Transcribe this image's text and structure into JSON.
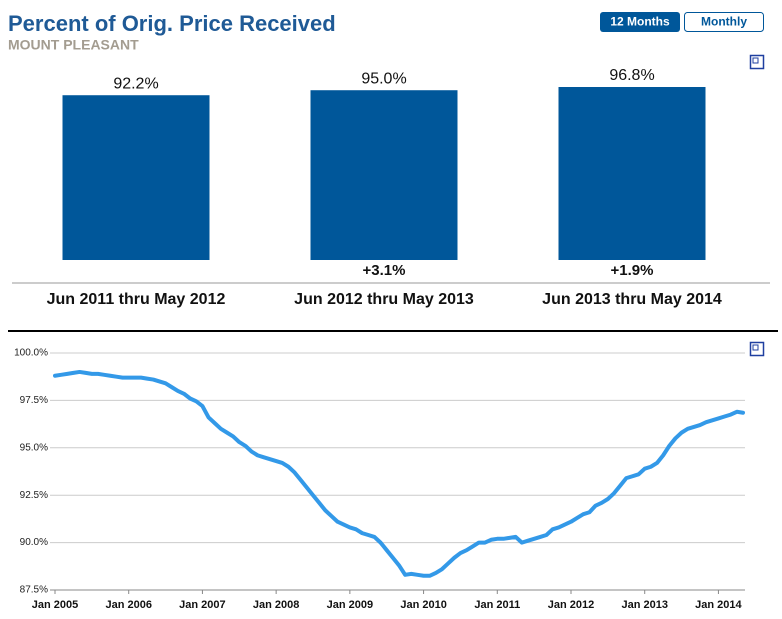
{
  "header": {
    "title": "Percent of Orig. Price Received",
    "subtitle": "MOUNT PLEASANT"
  },
  "controls": [
    {
      "label": "12 Months",
      "active": true
    },
    {
      "label": "Monthly",
      "active": false
    }
  ],
  "chart_data": [
    {
      "type": "bar",
      "categories": [
        "Jun 2011 thru May 2012",
        "Jun 2012 thru May 2013",
        "Jun 2013 thru May 2014"
      ],
      "values": [
        92.2,
        95.0,
        96.8
      ],
      "value_labels": [
        "92.2%",
        "95.0%",
        "96.8%"
      ],
      "changes": [
        null,
        3.1,
        1.9
      ],
      "change_labels": [
        null,
        "+3.1%",
        "+1.9%"
      ],
      "color": "#00579a"
    },
    {
      "type": "line",
      "x": [
        "2005-01",
        "2005-02",
        "2005-03",
        "2005-04",
        "2005-05",
        "2005-06",
        "2005-07",
        "2005-08",
        "2005-09",
        "2005-10",
        "2005-11",
        "2005-12",
        "2006-01",
        "2006-02",
        "2006-03",
        "2006-04",
        "2006-05",
        "2006-06",
        "2006-07",
        "2006-08",
        "2006-09",
        "2006-10",
        "2006-11",
        "2006-12",
        "2007-01",
        "2007-02",
        "2007-03",
        "2007-04",
        "2007-05",
        "2007-06",
        "2007-07",
        "2007-08",
        "2007-09",
        "2007-10",
        "2007-11",
        "2007-12",
        "2008-01",
        "2008-02",
        "2008-03",
        "2008-04",
        "2008-05",
        "2008-06",
        "2008-07",
        "2008-08",
        "2008-09",
        "2008-10",
        "2008-11",
        "2008-12",
        "2009-01",
        "2009-02",
        "2009-03",
        "2009-04",
        "2009-05",
        "2009-06",
        "2009-07",
        "2009-08",
        "2009-09",
        "2009-10",
        "2009-11",
        "2009-12",
        "2010-01",
        "2010-02",
        "2010-03",
        "2010-04",
        "2010-05",
        "2010-06",
        "2010-07",
        "2010-08",
        "2010-09",
        "2010-10",
        "2010-11",
        "2010-12",
        "2011-01",
        "2011-02",
        "2011-03",
        "2011-04",
        "2011-05",
        "2011-06",
        "2011-07",
        "2011-08",
        "2011-09",
        "2011-10",
        "2011-11",
        "2011-12",
        "2012-01",
        "2012-02",
        "2012-03",
        "2012-04",
        "2012-05",
        "2012-06",
        "2012-07",
        "2012-08",
        "2012-09",
        "2012-10",
        "2012-11",
        "2012-12",
        "2013-01",
        "2013-02",
        "2013-03",
        "2013-04",
        "2013-05",
        "2013-06",
        "2013-07",
        "2013-08",
        "2013-09",
        "2013-10",
        "2013-11",
        "2013-12",
        "2014-01",
        "2014-02",
        "2014-03",
        "2014-04",
        "2014-05"
      ],
      "values": [
        98.8,
        98.85,
        98.9,
        98.95,
        99.0,
        98.95,
        98.9,
        98.9,
        98.85,
        98.8,
        98.75,
        98.7,
        98.7,
        98.7,
        98.7,
        98.65,
        98.6,
        98.5,
        98.4,
        98.2,
        98.0,
        97.85,
        97.6,
        97.45,
        97.2,
        96.6,
        96.3,
        96.0,
        95.8,
        95.6,
        95.3,
        95.1,
        94.8,
        94.6,
        94.5,
        94.4,
        94.3,
        94.2,
        94.0,
        93.7,
        93.3,
        92.9,
        92.5,
        92.1,
        91.7,
        91.4,
        91.1,
        90.95,
        90.8,
        90.7,
        90.5,
        90.4,
        90.3,
        90.0,
        89.6,
        89.2,
        88.8,
        88.3,
        88.35,
        88.3,
        88.25,
        88.25,
        88.4,
        88.6,
        88.9,
        89.2,
        89.45,
        89.6,
        89.8,
        90.0,
        90.0,
        90.15,
        90.2,
        90.2,
        90.25,
        90.3,
        90.0,
        90.1,
        90.2,
        90.3,
        90.4,
        90.7,
        90.8,
        90.95,
        91.1,
        91.3,
        91.5,
        91.6,
        91.95,
        92.1,
        92.3,
        92.6,
        93.0,
        93.4,
        93.5,
        93.6,
        93.9,
        94.0,
        94.2,
        94.6,
        95.1,
        95.5,
        95.8,
        96.0,
        96.1,
        96.2,
        96.35,
        96.45,
        96.55,
        96.65,
        96.75,
        96.9,
        96.85
      ],
      "color": "#3399e8",
      "xlim": [
        "2005-01",
        "2014-05"
      ],
      "xticks": [
        {
          "value": "2005-01",
          "label": "Jan 2005"
        },
        {
          "value": "2006-01",
          "label": "Jan 2006"
        },
        {
          "value": "2007-01",
          "label": "Jan 2007"
        },
        {
          "value": "2008-01",
          "label": "Jan 2008"
        },
        {
          "value": "2009-01",
          "label": "Jan 2009"
        },
        {
          "value": "2010-01",
          "label": "Jan 2010"
        },
        {
          "value": "2011-01",
          "label": "Jan 2011"
        },
        {
          "value": "2012-01",
          "label": "Jan 2012"
        },
        {
          "value": "2013-01",
          "label": "Jan 2013"
        },
        {
          "value": "2014-01",
          "label": "Jan 2014"
        }
      ],
      "ylim": [
        87.5,
        100
      ],
      "yticks": [
        {
          "value": 87.5,
          "label": "87.5%"
        },
        {
          "value": 90,
          "label": "90.0%"
        },
        {
          "value": 92.5,
          "label": "92.5%"
        },
        {
          "value": 95,
          "label": "95.0%"
        },
        {
          "value": 97.5,
          "label": "97.5%"
        },
        {
          "value": 100,
          "label": "100.0%"
        }
      ],
      "grid": true
    }
  ]
}
